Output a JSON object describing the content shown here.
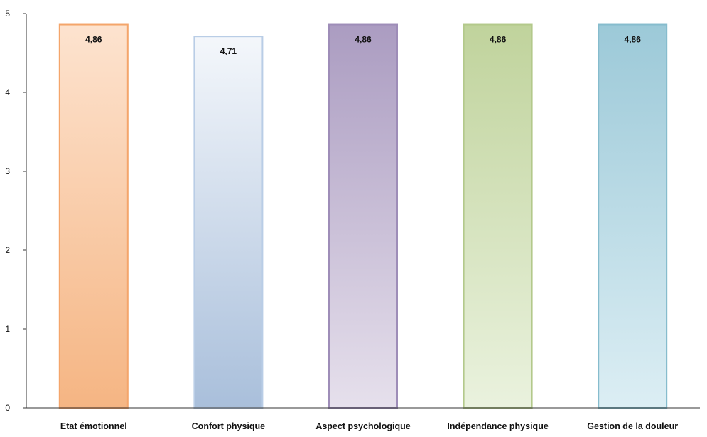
{
  "chart_data": {
    "type": "bar",
    "title": "",
    "xlabel": "",
    "ylabel": "",
    "categories": [
      "Etat émotionnel",
      "Confort physique",
      "Aspect psychologique",
      "Indépendance physique",
      "Gestion de la douleur"
    ],
    "values": [
      4.86,
      4.71,
      4.86,
      4.86,
      4.86
    ],
    "value_labels": [
      "4,86",
      "4,71",
      "4,86",
      "4,86",
      "4,86"
    ],
    "ylim": [
      0,
      5
    ],
    "yticks": [
      0,
      1,
      2,
      3,
      4,
      5
    ],
    "grid": false,
    "legend": "none",
    "colors": {
      "bars": [
        {
          "top": "#fde3cf",
          "bottom": "#f5b583",
          "stroke": "#f4a56b"
        },
        {
          "top": "#f4f7fb",
          "bottom": "#a9bfdb",
          "stroke": "#b9cde6"
        },
        {
          "top": "#ab9cc1",
          "bottom": "#e6e0ec",
          "stroke": "#9e8db8"
        },
        {
          "top": "#c0d39c",
          "bottom": "#eaf2de",
          "stroke": "#b3c98b"
        },
        {
          "top": "#9cc9d8",
          "bottom": "#dceef4",
          "stroke": "#86bccd"
        }
      ],
      "axis": "#333333",
      "text": "#111111"
    }
  }
}
